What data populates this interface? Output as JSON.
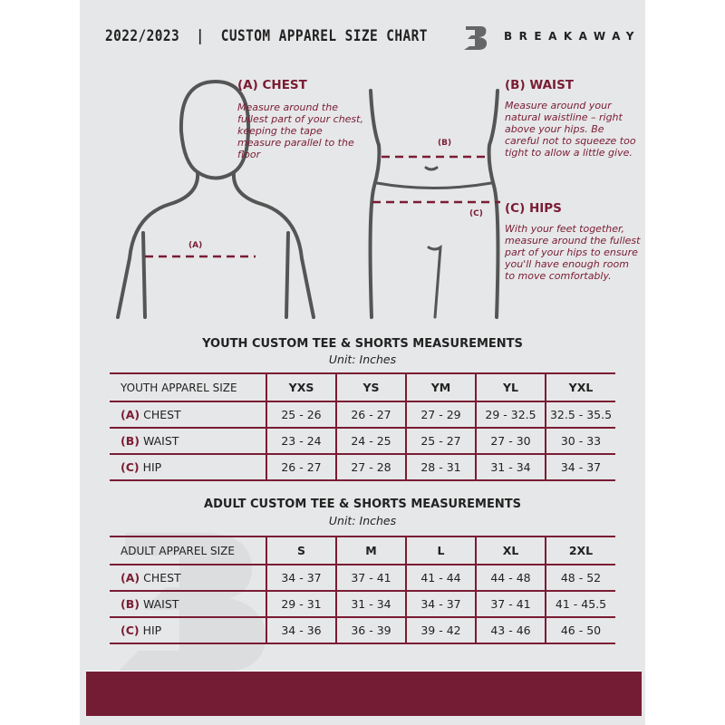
{
  "header": {
    "title": "2022/2023  |  CUSTOM APPAREL SIZE CHART",
    "brand": "BREAKAWAY",
    "logo_letter": "B"
  },
  "colors": {
    "accent": "#741c33",
    "background": "#e6e7e8",
    "figure": "#555555"
  },
  "measures": {
    "chest": {
      "title": "(A) CHEST",
      "label": "(A)",
      "desc": "Measure around the fullest part of your chest, keeping the tape measure parallel to the floor"
    },
    "waist": {
      "title": "(B) WAIST",
      "label": "(B)",
      "desc": "Measure around your natural waistline – right above your hips. Be careful not to squeeze too tight to allow a little give."
    },
    "hips": {
      "title": "(C) HIPS",
      "label": "(C)",
      "desc": "With your feet together, measure around the fullest part of your hips to ensure you'll have enough room to move comfortably."
    }
  },
  "youth": {
    "title": "YOUTH CUSTOM TEE & SHORTS MEASUREMENTS",
    "unit": "Unit: Inches",
    "header": [
      "YOUTH APPAREL SIZE",
      "YXS",
      "YS",
      "YM",
      "YL",
      "YXL"
    ],
    "rows": [
      {
        "letter": "(A)",
        "name": "CHEST",
        "values": [
          "25 - 26",
          "26 - 27",
          "27 - 29",
          "29 - 32.5",
          "32.5 - 35.5"
        ]
      },
      {
        "letter": "(B)",
        "name": "WAIST",
        "values": [
          "23 - 24",
          "24 - 25",
          "25 - 27",
          "27 - 30",
          "30 - 33"
        ]
      },
      {
        "letter": "(C)",
        "name": "HIP",
        "values": [
          "26 - 27",
          "27 - 28",
          "28 - 31",
          "31 - 34",
          "34 - 37"
        ]
      }
    ]
  },
  "adult": {
    "title": "ADULT CUSTOM TEE & SHORTS MEASUREMENTS",
    "unit": "Unit: Inches",
    "header": [
      "ADULT APPAREL SIZE",
      "S",
      "M",
      "L",
      "XL",
      "2XL"
    ],
    "rows": [
      {
        "letter": "(A)",
        "name": "CHEST",
        "values": [
          "34 - 37",
          "37 - 41",
          "41 - 44",
          "44 - 48",
          "48 - 52"
        ]
      },
      {
        "letter": "(B)",
        "name": "WAIST",
        "values": [
          "29 - 31",
          "31 - 34",
          "34 - 37",
          "37 - 41",
          "41 - 45.5"
        ]
      },
      {
        "letter": "(C)",
        "name": "HIP",
        "values": [
          "34 - 36",
          "36 - 39",
          "39 - 42",
          "43 - 46",
          "46 - 50"
        ]
      }
    ]
  }
}
